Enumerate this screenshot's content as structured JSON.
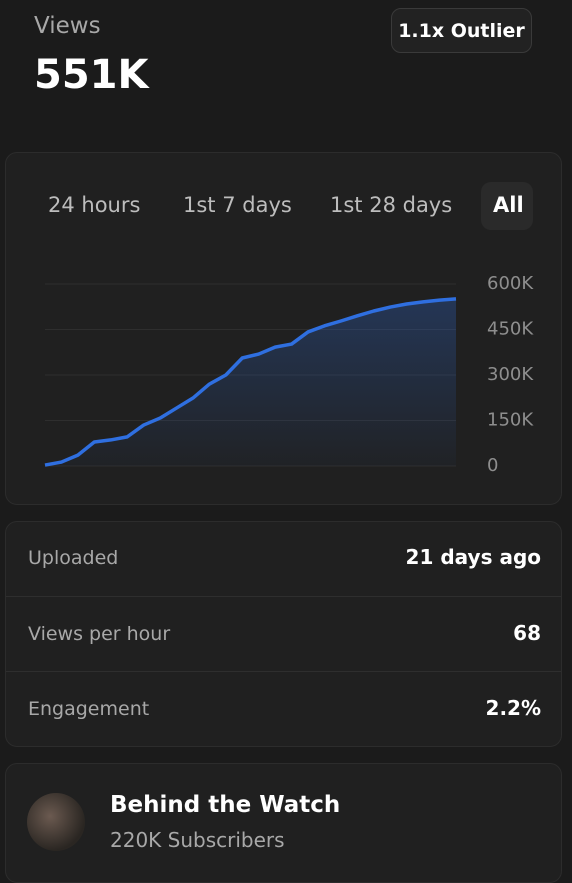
{
  "header": {
    "label": "Views",
    "value": "551K",
    "badge": "1.1x Outlier"
  },
  "tabs": [
    "24 hours",
    "1st 7 days",
    "1st 28 days",
    "All"
  ],
  "chart_data": {
    "type": "line",
    "categories": [
      null,
      null,
      null,
      null,
      null,
      null,
      null,
      null,
      null,
      null,
      null,
      null,
      null,
      null,
      null,
      null,
      null,
      null,
      null,
      null,
      null,
      null,
      null,
      null,
      null,
      null
    ],
    "series": [
      {
        "color": "#2f6fe0",
        "values": [
          3000,
          13000,
          36000,
          79000,
          86000,
          96000,
          135000,
          158000,
          191000,
          224000,
          270000,
          300000,
          356000,
          369000,
          392000,
          402000,
          442000,
          462000,
          478000,
          495000,
          511000,
          524000,
          534000,
          541000,
          547000,
          551000
        ]
      }
    ],
    "ylim": [
      0,
      600000
    ],
    "yticks": [
      0,
      {
        "value": 150000,
        "label": "150K"
      },
      {
        "value": 300000,
        "label": "300K"
      },
      {
        "value": 450000,
        "label": "450K"
      },
      {
        "value": 600000,
        "label": "600K"
      }
    ],
    "grid": true
  },
  "stats": [
    {
      "label": "Uploaded",
      "value": "21 days ago"
    },
    {
      "label": "Views per hour",
      "value": "68"
    },
    {
      "label": "Engagement",
      "value": "2.2%"
    }
  ],
  "channel": {
    "name": "Behind the Watch",
    "subscribers": "220K Subscribers"
  }
}
